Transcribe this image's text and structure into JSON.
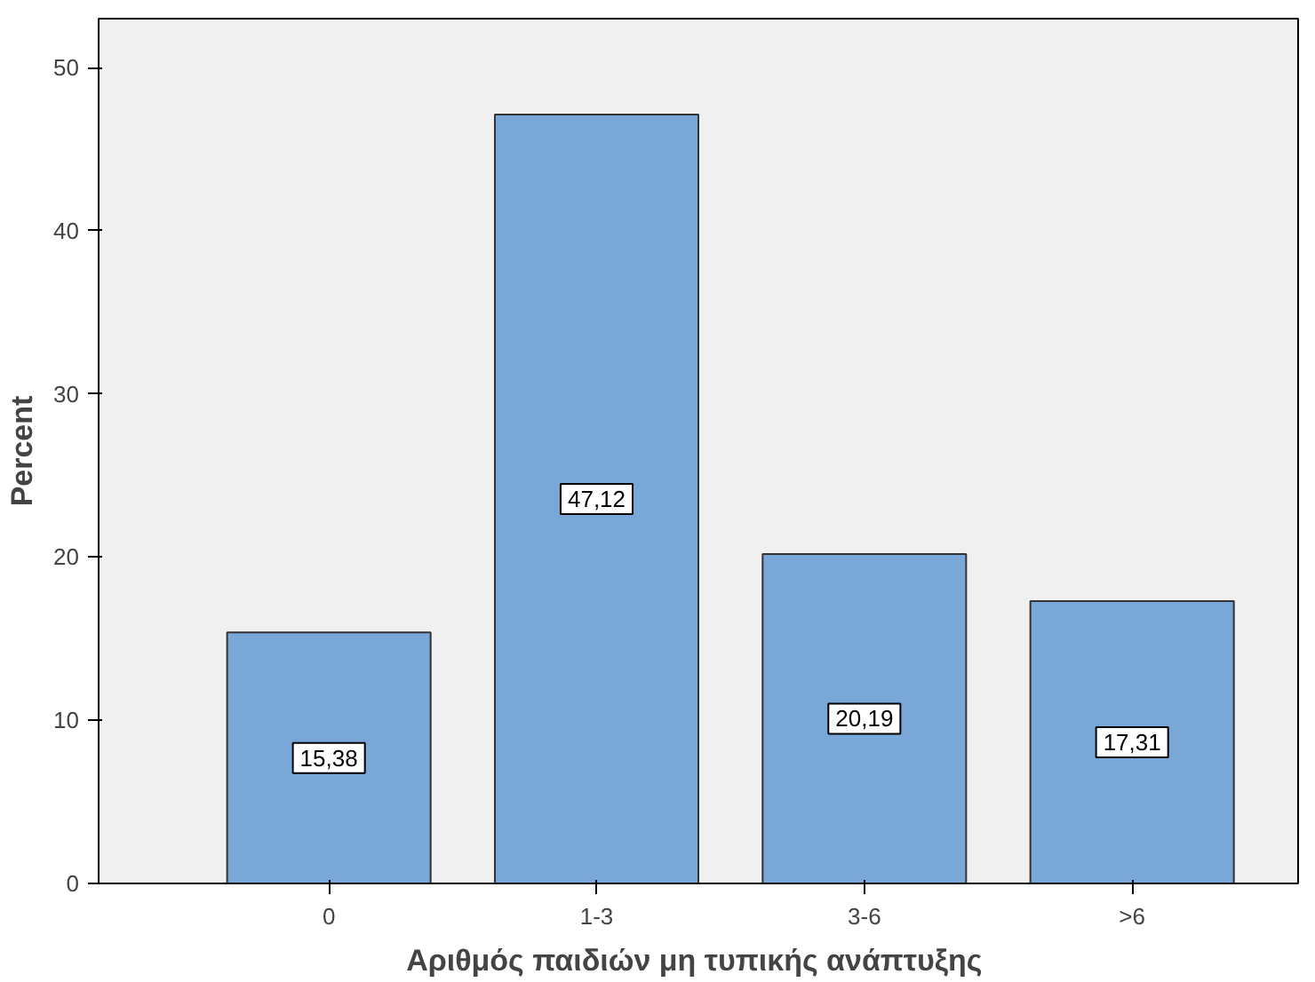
{
  "chart_data": {
    "type": "bar",
    "xlabel": "Αριθμός παιδιών  μη τυπικής ανάπτυξης",
    "ylabel": "Percent",
    "categories": [
      "0",
      "1-3",
      "3-6",
      ">6"
    ],
    "values": [
      15.38,
      47.12,
      20.19,
      17.31
    ],
    "value_labels": [
      "15,38",
      "47,12",
      "20,19",
      "17,31"
    ],
    "color": "#79a7d7",
    "ylim": [
      0,
      53
    ],
    "yticks": [
      0,
      10,
      20,
      30,
      40,
      50
    ],
    "grid": false
  }
}
